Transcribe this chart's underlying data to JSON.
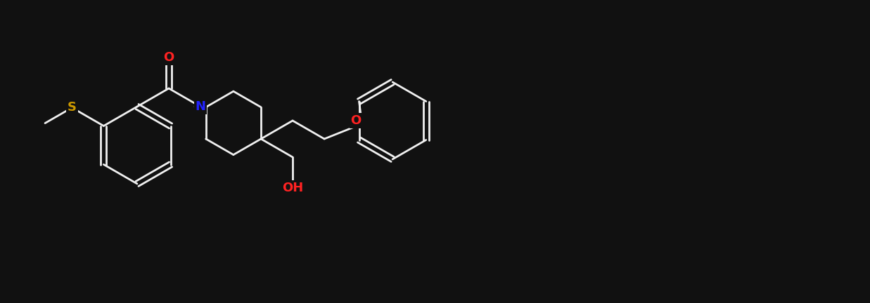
{
  "background_color": "#111111",
  "bond_color": "#f0f0f0",
  "atom_colors": {
    "O": "#ff2222",
    "N": "#2222ff",
    "S": "#cc9900",
    "C": "#f0f0f0",
    "H": "#f0f0f0"
  },
  "figsize": [
    12.37,
    4.32
  ],
  "dpi": 100,
  "bond_lw": 2.0,
  "font_size": 13
}
